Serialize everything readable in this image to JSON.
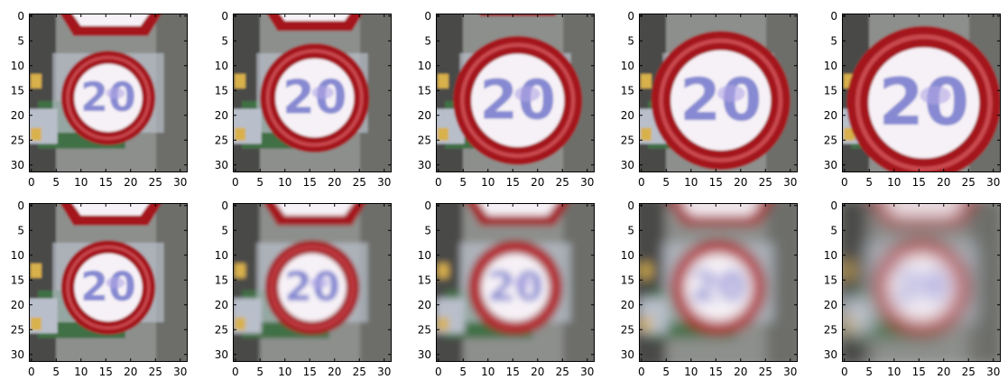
{
  "figure": {
    "grid": {
      "rows": 2,
      "cols": 5
    },
    "axis": {
      "x_ticks": [
        0,
        5,
        10,
        15,
        20,
        25,
        30
      ],
      "y_ticks": [
        0,
        5,
        10,
        15,
        20,
        25,
        30
      ],
      "range": [
        -0.5,
        31.5
      ]
    },
    "palette": {
      "sign_red": "#a4161a",
      "sign_red_light": "#c94a4f",
      "sign_white": "#f6f1f6",
      "digit_blue": "#7b7fcf",
      "digit_lilac": "#b3a7e6",
      "road_green": "#3f6f45",
      "road_yellow": "#d8b14b",
      "plate_gray": "#b9bfca",
      "dark": "#2c2c2c"
    },
    "images": [
      {
        "row": 0,
        "col": 0,
        "variant": "original",
        "digits": "20",
        "view": "frontal",
        "blur": 0
      },
      {
        "row": 0,
        "col": 1,
        "variant": "original",
        "digits": "20",
        "view": "frontal-large",
        "blur": 0
      },
      {
        "row": 0,
        "col": 2,
        "variant": "original",
        "digits": "20",
        "view": "close",
        "blur": 0
      },
      {
        "row": 0,
        "col": 3,
        "variant": "original",
        "digits": "20",
        "view": "closer",
        "blur": 0
      },
      {
        "row": 0,
        "col": 4,
        "variant": "original",
        "digits": "20",
        "view": "closest",
        "blur": 0
      },
      {
        "row": 1,
        "col": 0,
        "variant": "blurred",
        "digits": "20",
        "view": "frontal",
        "blur": 0.3
      },
      {
        "row": 1,
        "col": 1,
        "variant": "blurred",
        "digits": "20",
        "view": "frontal",
        "blur": 0.6
      },
      {
        "row": 1,
        "col": 2,
        "variant": "blurred",
        "digits": "20",
        "view": "frontal",
        "blur": 1.0
      },
      {
        "row": 1,
        "col": 3,
        "variant": "blurred",
        "digits": "20",
        "view": "frontal",
        "blur": 1.6
      },
      {
        "row": 1,
        "col": 4,
        "variant": "blurred",
        "digits": "20",
        "view": "frontal",
        "blur": 2.3
      }
    ]
  }
}
